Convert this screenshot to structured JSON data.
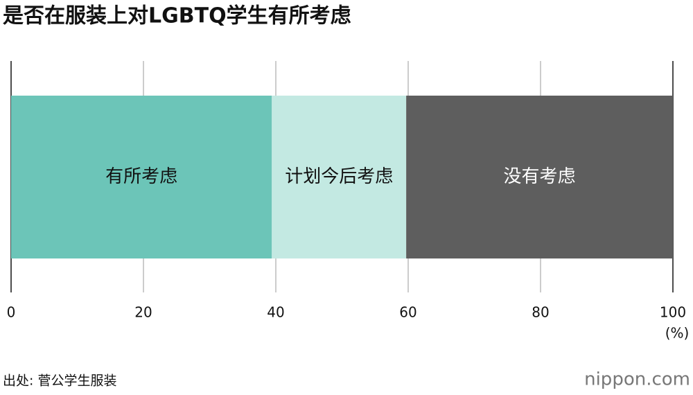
{
  "chart_data": {
    "type": "bar",
    "orientation": "horizontal",
    "stacked": true,
    "title": "是否在服装上对LGBTQ学生有所考虑",
    "categories": [
      null
    ],
    "series": [
      {
        "name": "有所考虑",
        "color": "#6cc5b8",
        "values": [
          39.4
        ]
      },
      {
        "name": "计划今后考虑",
        "color": "#c3e9e2",
        "values": [
          20.3
        ]
      },
      {
        "name": "没有考虑",
        "color": "#5e5e5e",
        "values": [
          40.3
        ]
      }
    ],
    "xlim": [
      0,
      100
    ],
    "xticks": [
      0,
      20,
      40,
      60,
      80,
      100
    ],
    "grid": true,
    "x_label": "(%)",
    "source": "出处: 菅公学生服装",
    "logo": "nippon.com"
  }
}
